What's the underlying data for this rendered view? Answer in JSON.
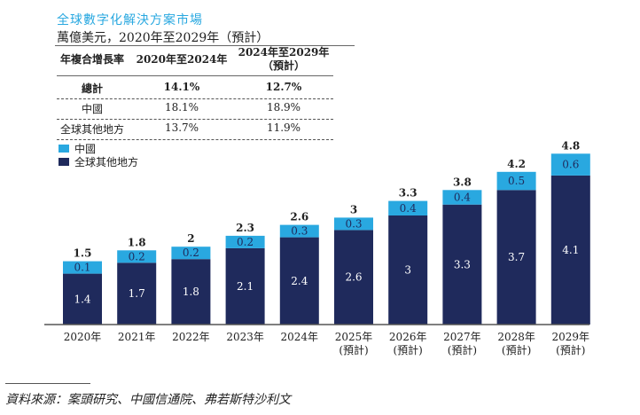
{
  "title": "全球數字化解決方案市場",
  "subtitle": "萬億美元，2020年至2029年（預計）",
  "cagr_table": {
    "headers": [
      "年複合增長率",
      "2020年至2024年",
      "2024年至2029年\n（預計）"
    ],
    "rows": [
      [
        "總計",
        "14.1%",
        "12.7%"
      ],
      [
        "中國",
        "18.1%",
        "18.9%"
      ],
      [
        "全球其他地方",
        "13.7%",
        "11.9%"
      ]
    ]
  },
  "source": "資料來源：案頭研究、中國信通院、弗若斯特沙利文",
  "chart_data": {
    "type": "bar",
    "stacked": true,
    "categories": [
      "2020年",
      "2021年",
      "2022年",
      "2023年",
      "2024年",
      "2025年\n(預計)",
      "2026年\n(預計)",
      "2027年\n(預計)",
      "2028年\n(預計)",
      "2029年\n(預計)"
    ],
    "series": [
      {
        "name": "全球其他地方",
        "color": "#1f2a5c",
        "values": [
          1.4,
          1.7,
          1.8,
          2.1,
          2.4,
          2.6,
          3.0,
          3.3,
          3.7,
          4.1
        ]
      },
      {
        "name": "中國",
        "color": "#29a8e0",
        "values": [
          0.1,
          0.2,
          0.2,
          0.2,
          0.3,
          0.3,
          0.4,
          0.4,
          0.5,
          0.6
        ]
      }
    ],
    "totals": [
      1.5,
      1.8,
      2.0,
      2.3,
      2.6,
      3.0,
      3.3,
      3.8,
      4.2,
      4.8
    ],
    "legend": "top-left"
  }
}
